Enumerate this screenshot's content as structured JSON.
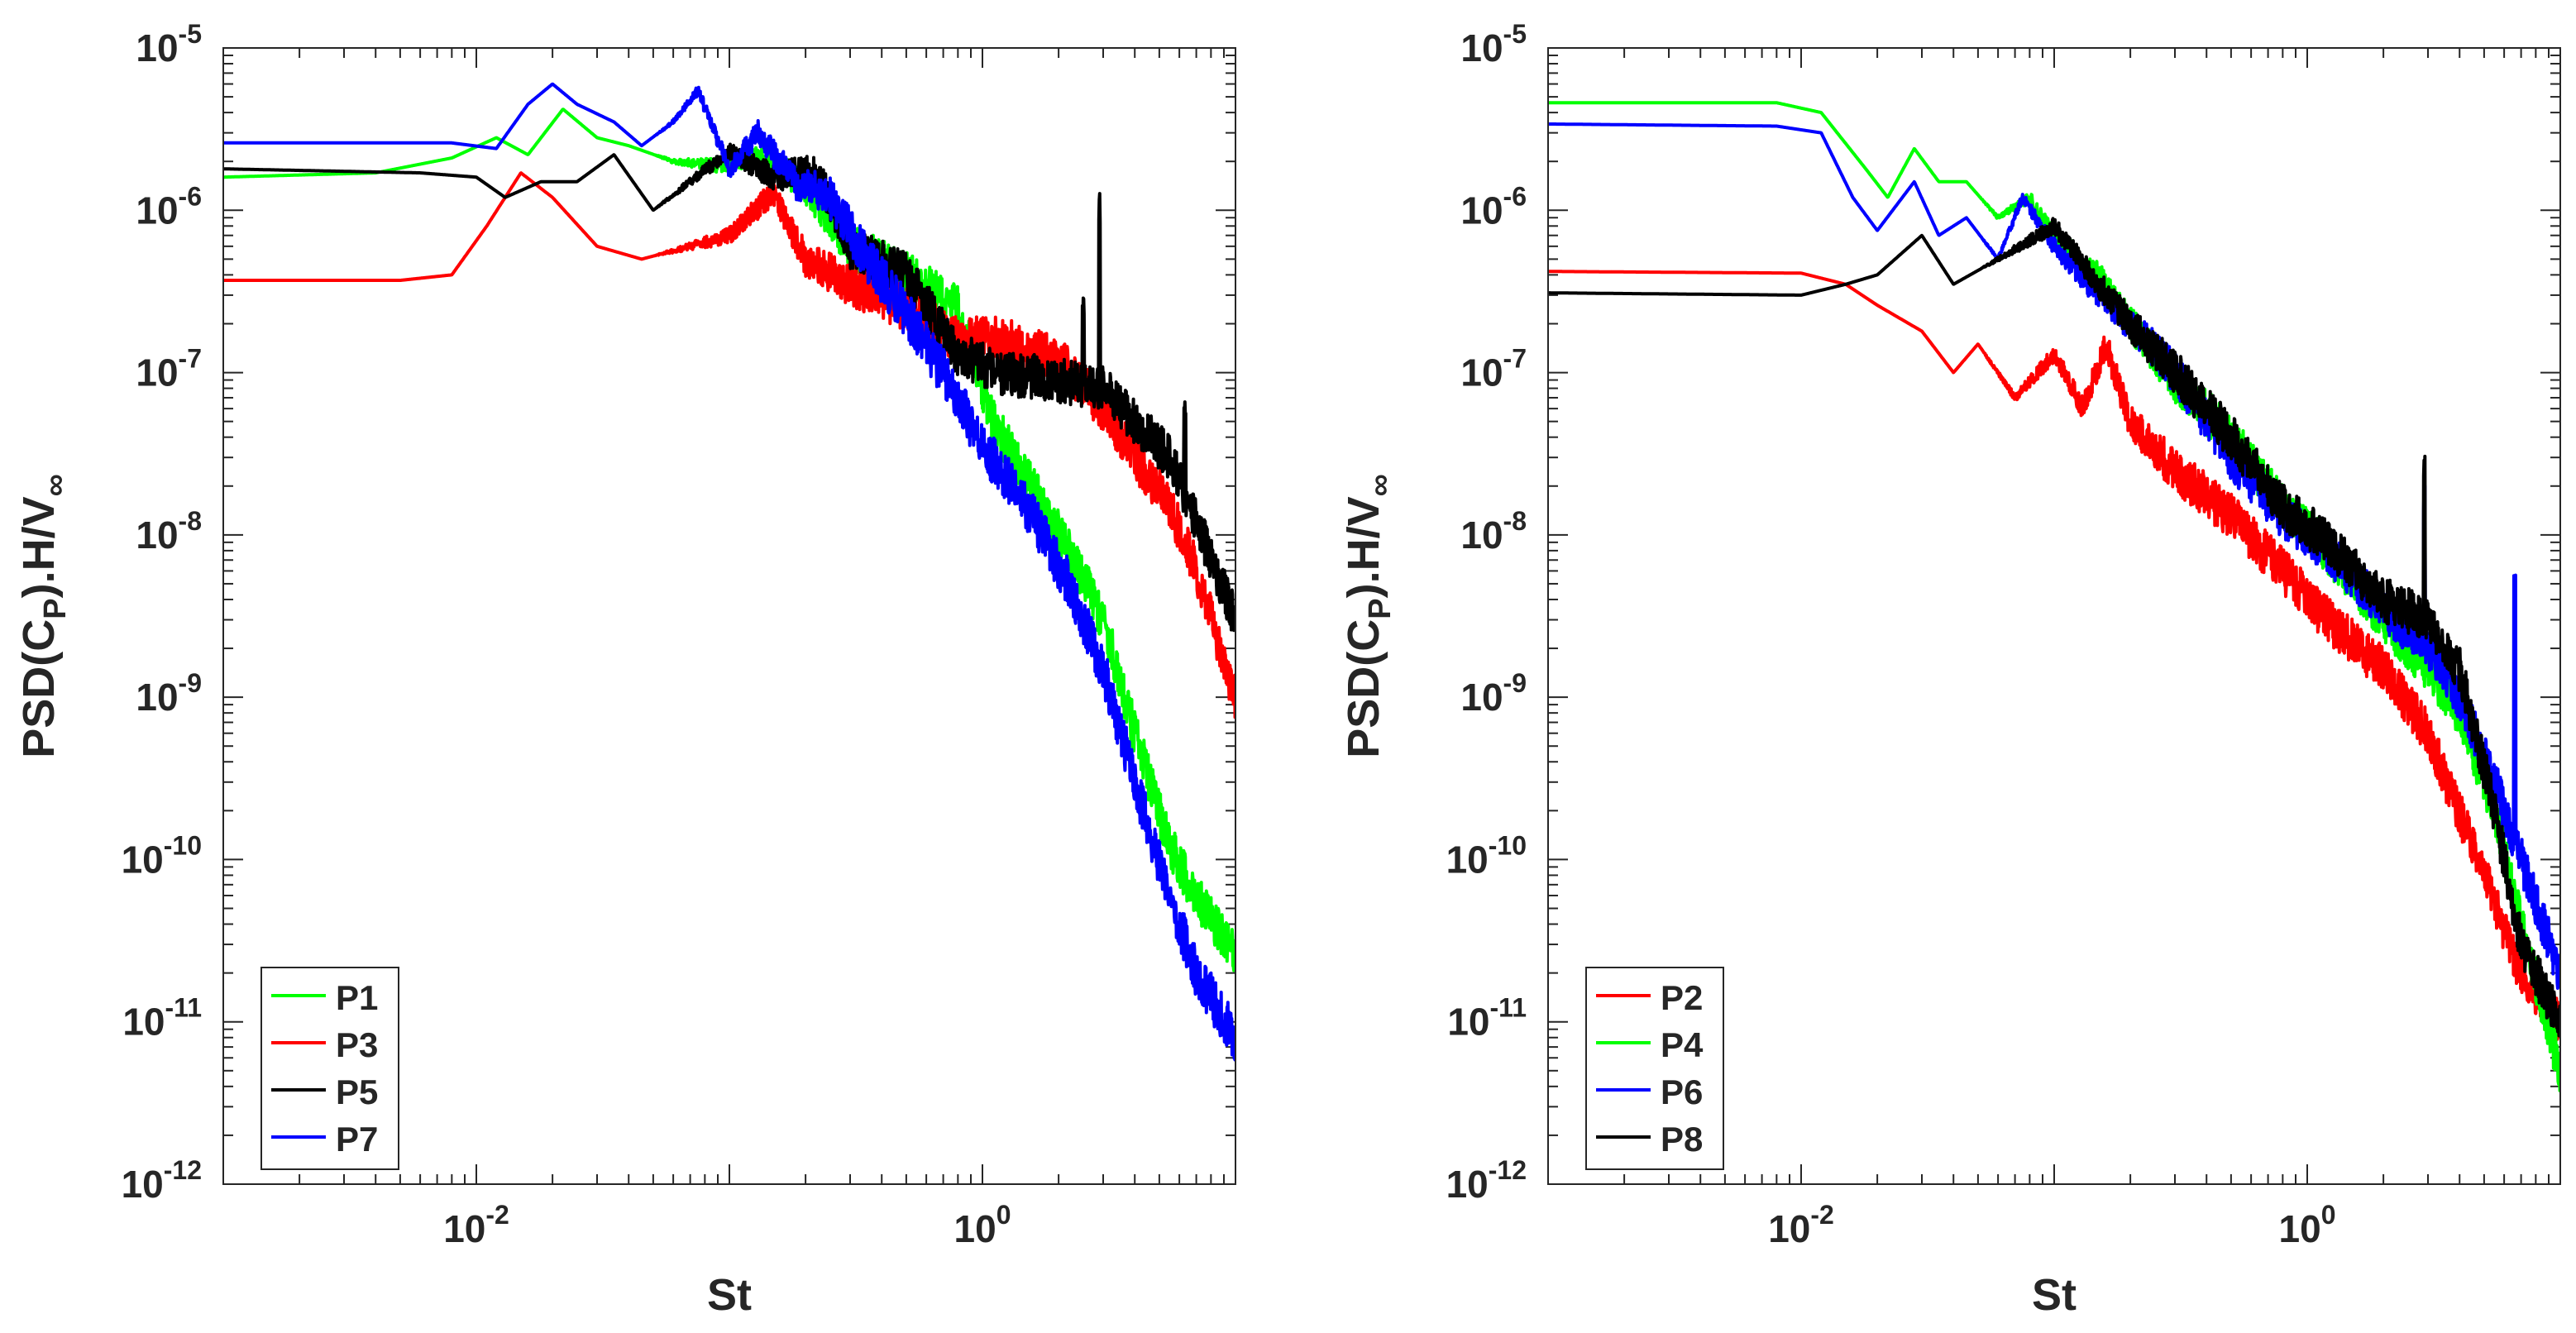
{
  "chart_data": [
    {
      "type": "line",
      "scale": "log-log",
      "xlabel": "St",
      "ylabel": "PSD(C",
      "ylabel_sub": "P",
      "ylabel_tail": ").H/V",
      "ylabel_tail_sub": "∞",
      "xlim": [
        0.001,
        10
      ],
      "ylim": [
        1e-12,
        1e-05
      ],
      "x_ticks": [
        {
          "value": 0.01,
          "base": "10",
          "exp": "-2"
        },
        {
          "value": 1,
          "base": "10",
          "exp": "0"
        }
      ],
      "y_ticks": [
        {
          "value": 1e-05,
          "base": "10",
          "exp": "-5"
        },
        {
          "value": 1e-06,
          "base": "10",
          "exp": "-6"
        },
        {
          "value": 1e-07,
          "base": "10",
          "exp": "-7"
        },
        {
          "value": 1e-08,
          "base": "10",
          "exp": "-8"
        },
        {
          "value": 1e-09,
          "base": "10",
          "exp": "-9"
        },
        {
          "value": 1e-10,
          "base": "10",
          "exp": "-10"
        },
        {
          "value": 1e-11,
          "base": "10",
          "exp": "-11"
        },
        {
          "value": 1e-12,
          "base": "10",
          "exp": "-12"
        }
      ],
      "legend_position": "bottom-left",
      "series": [
        {
          "name": "P1",
          "color": "#00ff00",
          "seed": 11,
          "noise": 0.14,
          "points": [
            [
              0.001,
              1.6e-06
            ],
            [
              0.004,
              1.7e-06
            ],
            [
              0.008,
              2.1e-06
            ],
            [
              0.012,
              2.8e-06
            ],
            [
              0.016,
              2.2e-06
            ],
            [
              0.022,
              4.2e-06
            ],
            [
              0.03,
              2.8e-06
            ],
            [
              0.04,
              2.5e-06
            ],
            [
              0.06,
              2e-06
            ],
            [
              0.09,
              1.9e-06
            ],
            [
              0.13,
              2.2e-06
            ],
            [
              0.2,
              1.4e-06
            ],
            [
              0.3,
              6e-07
            ],
            [
              0.5,
              4e-07
            ],
            [
              0.8,
              2.5e-07
            ],
            [
              1.1,
              5e-08
            ],
            [
              1.5,
              2.2e-08
            ],
            [
              2.2,
              8e-09
            ],
            [
              3,
              3e-09
            ],
            [
              4,
              6e-10
            ],
            [
              5.5,
              1.2e-10
            ],
            [
              7,
              6e-11
            ],
            [
              10,
              2.5e-11
            ]
          ]
        },
        {
          "name": "P3",
          "color": "#ff0000",
          "seed": 23,
          "noise": 0.14,
          "points": [
            [
              0.001,
              3.7e-07
            ],
            [
              0.005,
              3.7e-07
            ],
            [
              0.008,
              4e-07
            ],
            [
              0.011,
              8e-07
            ],
            [
              0.015,
              1.7e-06
            ],
            [
              0.02,
              1.2e-06
            ],
            [
              0.03,
              6e-07
            ],
            [
              0.045,
              5e-07
            ],
            [
              0.07,
              6e-07
            ],
            [
              0.1,
              7e-07
            ],
            [
              0.15,
              1.3e-06
            ],
            [
              0.2,
              5e-07
            ],
            [
              0.3,
              3.5e-07
            ],
            [
              0.5,
              2.5e-07
            ],
            [
              0.8,
              1.6e-07
            ],
            [
              1.2,
              1.6e-07
            ],
            [
              2,
              1.2e-07
            ],
            [
              3,
              6e-08
            ],
            [
              4,
              3e-08
            ],
            [
              5.5,
              1.5e-08
            ],
            [
              7,
              6e-09
            ],
            [
              10,
              1e-09
            ]
          ]
        },
        {
          "name": "P5",
          "color": "#000000",
          "seed": 37,
          "noise": 0.14,
          "points": [
            [
              0.001,
              1.8e-06
            ],
            [
              0.006,
              1.7e-06
            ],
            [
              0.01,
              1.6e-06
            ],
            [
              0.013,
              1.2e-06
            ],
            [
              0.018,
              1.5e-06
            ],
            [
              0.025,
              1.5e-06
            ],
            [
              0.035,
              2.2e-06
            ],
            [
              0.05,
              1e-06
            ],
            [
              0.07,
              1.5e-06
            ],
            [
              0.1,
              2.3e-06
            ],
            [
              0.15,
              1.6e-06
            ],
            [
              0.22,
              1.8e-06
            ],
            [
              0.3,
              6e-07
            ],
            [
              0.5,
              4e-07
            ],
            [
              0.8,
              1.3e-07
            ],
            [
              1.2,
              1e-07
            ],
            [
              2,
              9e-08
            ],
            [
              3,
              8e-08
            ],
            [
              4,
              5e-08
            ],
            [
              5.5,
              3e-08
            ],
            [
              7,
              1.2e-08
            ],
            [
              10,
              3e-09
            ]
          ],
          "spikes": [
            [
              2.5,
              3
            ],
            [
              2.9,
              12
            ],
            [
              6.3,
              4
            ]
          ]
        },
        {
          "name": "P7",
          "color": "#0000ff",
          "seed": 53,
          "noise": 0.15,
          "points": [
            [
              0.001,
              2.6e-06
            ],
            [
              0.008,
              2.6e-06
            ],
            [
              0.012,
              2.4e-06
            ],
            [
              0.016,
              4.5e-06
            ],
            [
              0.02,
              6e-06
            ],
            [
              0.025,
              4.5e-06
            ],
            [
              0.035,
              3.5e-06
            ],
            [
              0.045,
              2.5e-06
            ],
            [
              0.06,
              3.5e-06
            ],
            [
              0.075,
              5.5e-06
            ],
            [
              0.1,
              1.8e-06
            ],
            [
              0.13,
              3e-06
            ],
            [
              0.18,
              1.5e-06
            ],
            [
              0.25,
              1.2e-06
            ],
            [
              0.35,
              5e-07
            ],
            [
              0.5,
              2.3e-07
            ],
            [
              0.7,
              1e-07
            ],
            [
              1,
              3.5e-08
            ],
            [
              1.5,
              1.5e-08
            ],
            [
              2.2,
              5e-09
            ],
            [
              3,
              1.5e-09
            ],
            [
              4,
              3e-10
            ],
            [
              5.5,
              6e-11
            ],
            [
              7,
              2e-11
            ],
            [
              10,
              8e-12
            ]
          ]
        }
      ]
    },
    {
      "type": "line",
      "scale": "log-log",
      "xlabel": "St",
      "ylabel": "PSD(C",
      "ylabel_sub": "P",
      "ylabel_tail": ").H/V",
      "ylabel_tail_sub": "∞",
      "xlim": [
        0.001,
        10
      ],
      "ylim": [
        1e-12,
        1e-05
      ],
      "x_ticks": [
        {
          "value": 0.01,
          "base": "10",
          "exp": "-2"
        },
        {
          "value": 1,
          "base": "10",
          "exp": "0"
        }
      ],
      "y_ticks": [
        {
          "value": 1e-05,
          "base": "10",
          "exp": "-5"
        },
        {
          "value": 1e-06,
          "base": "10",
          "exp": "-6"
        },
        {
          "value": 1e-07,
          "base": "10",
          "exp": "-7"
        },
        {
          "value": 1e-08,
          "base": "10",
          "exp": "-8"
        },
        {
          "value": 1e-09,
          "base": "10",
          "exp": "-9"
        },
        {
          "value": 1e-10,
          "base": "10",
          "exp": "-10"
        },
        {
          "value": 1e-11,
          "base": "10",
          "exp": "-11"
        },
        {
          "value": 1e-12,
          "base": "10",
          "exp": "-12"
        }
      ],
      "legend_position": "bottom-left",
      "series": [
        {
          "name": "P2",
          "color": "#ff0000",
          "seed": 71,
          "noise": 0.14,
          "points": [
            [
              0.001,
              4.2e-07
            ],
            [
              0.01,
              4.1e-07
            ],
            [
              0.015,
              3.5e-07
            ],
            [
              0.02,
              2.6e-07
            ],
            [
              0.03,
              1.8e-07
            ],
            [
              0.04,
              1e-07
            ],
            [
              0.05,
              1.5e-07
            ],
            [
              0.07,
              7e-08
            ],
            [
              0.1,
              1.3e-07
            ],
            [
              0.13,
              6e-08
            ],
            [
              0.16,
              1.5e-07
            ],
            [
              0.2,
              5e-08
            ],
            [
              0.3,
              2.5e-08
            ],
            [
              0.5,
              1.3e-08
            ],
            [
              0.8,
              6e-09
            ],
            [
              1.2,
              3e-09
            ],
            [
              2,
              1.5e-09
            ],
            [
              3,
              6e-10
            ],
            [
              5,
              8e-11
            ],
            [
              7,
              2e-11
            ],
            [
              10,
              1e-11
            ]
          ]
        },
        {
          "name": "P4",
          "color": "#00ff00",
          "seed": 83,
          "noise": 0.14,
          "points": [
            [
              0.001,
              4.6e-06
            ],
            [
              0.008,
              4.6e-06
            ],
            [
              0.012,
              4e-06
            ],
            [
              0.018,
              1.8e-06
            ],
            [
              0.022,
              1.2e-06
            ],
            [
              0.028,
              2.4e-06
            ],
            [
              0.035,
              1.5e-06
            ],
            [
              0.045,
              1.5e-06
            ],
            [
              0.06,
              9e-07
            ],
            [
              0.08,
              1.2e-06
            ],
            [
              0.1,
              7e-07
            ],
            [
              0.15,
              4e-07
            ],
            [
              0.2,
              2e-07
            ],
            [
              0.3,
              9e-08
            ],
            [
              0.5,
              4e-08
            ],
            [
              0.8,
              1.5e-08
            ],
            [
              1.2,
              8e-09
            ],
            [
              2,
              3e-09
            ],
            [
              3,
              1.5e-09
            ],
            [
              4,
              8e-10
            ],
            [
              5.5,
              2e-10
            ],
            [
              7,
              4e-11
            ],
            [
              10,
              5e-12
            ]
          ]
        },
        {
          "name": "P6",
          "color": "#0000ff",
          "seed": 97,
          "noise": 0.14,
          "points": [
            [
              0.001,
              3.4e-06
            ],
            [
              0.008,
              3.3e-06
            ],
            [
              0.012,
              3e-06
            ],
            [
              0.016,
              1.2e-06
            ],
            [
              0.02,
              7.5e-07
            ],
            [
              0.028,
              1.5e-06
            ],
            [
              0.035,
              7e-07
            ],
            [
              0.045,
              9e-07
            ],
            [
              0.06,
              5e-07
            ],
            [
              0.075,
              1.2e-06
            ],
            [
              0.1,
              6e-07
            ],
            [
              0.15,
              3e-07
            ],
            [
              0.2,
              2e-07
            ],
            [
              0.3,
              1e-07
            ],
            [
              0.5,
              3e-08
            ],
            [
              0.8,
              1.3e-08
            ],
            [
              1.2,
              8e-09
            ],
            [
              2,
              3.5e-09
            ],
            [
              3,
              2e-09
            ],
            [
              4,
              1e-09
            ],
            [
              5.5,
              3e-10
            ],
            [
              7,
              1e-10
            ],
            [
              10,
              2e-11
            ]
          ],
          "spikes": [
            [
              2.9,
              7
            ],
            [
              6.6,
              40
            ]
          ]
        },
        {
          "name": "P8",
          "color": "#000000",
          "seed": 101,
          "noise": 0.14,
          "points": [
            [
              0.001,
              3.1e-07
            ],
            [
              0.01,
              3e-07
            ],
            [
              0.015,
              3.5e-07
            ],
            [
              0.02,
              4e-07
            ],
            [
              0.03,
              7e-07
            ],
            [
              0.04,
              3.5e-07
            ],
            [
              0.06,
              5e-07
            ],
            [
              0.1,
              8e-07
            ],
            [
              0.15,
              3.5e-07
            ],
            [
              0.2,
              2e-07
            ],
            [
              0.3,
              1e-07
            ],
            [
              0.5,
              4e-08
            ],
            [
              0.8,
              1.5e-08
            ],
            [
              1.2,
              9e-09
            ],
            [
              2,
              4e-09
            ],
            [
              3,
              3e-09
            ],
            [
              4,
              1.5e-09
            ],
            [
              5.5,
              2e-10
            ],
            [
              7,
              3e-11
            ],
            [
              10,
              1e-11
            ]
          ],
          "spikes": [
            [
              2.9,
              8
            ]
          ]
        }
      ]
    }
  ]
}
